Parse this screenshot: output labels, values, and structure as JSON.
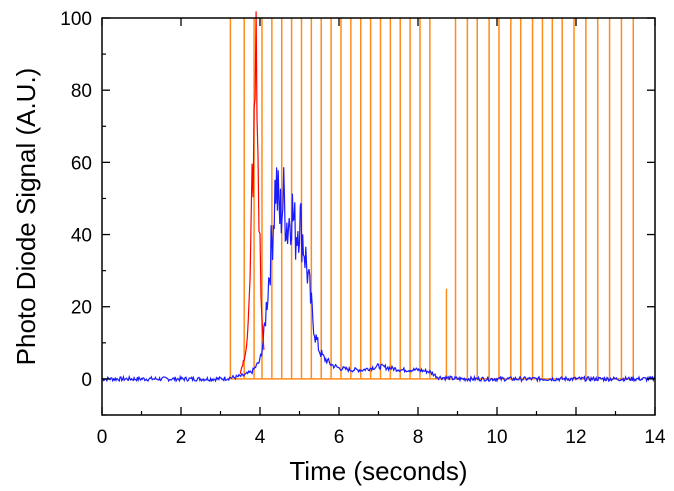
{
  "chart_data": {
    "type": "line",
    "xlabel": "Time (seconds)",
    "ylabel": "Photo Diode Signal (A.U.)",
    "xlim": [
      0,
      14
    ],
    "ylim": [
      -10,
      100
    ],
    "xticks": [
      0,
      2,
      4,
      6,
      8,
      10,
      12,
      14
    ],
    "yticks": [
      0,
      20,
      40,
      60,
      80,
      100
    ],
    "grid": false,
    "colors": {
      "blue": "#1a1aff",
      "red": "#ff0000",
      "orange": "#ff8c1a"
    },
    "series": [
      {
        "color": "#1a1aff",
        "x": [
          0,
          0.5,
          1,
          1.5,
          2,
          2.5,
          3,
          3.4,
          3.6,
          3.8,
          4.0,
          4.1,
          4.2,
          4.3,
          4.4,
          4.5,
          4.6,
          4.7,
          4.8,
          4.9,
          5.0,
          5.1,
          5.2,
          5.3,
          5.4,
          5.5,
          5.6,
          5.8,
          6.0,
          6.3,
          6.6,
          7.0,
          7.3,
          7.6,
          8.0,
          8.3,
          8.5,
          9,
          10,
          11,
          12,
          13,
          14
        ],
        "y": [
          0,
          0,
          0,
          0,
          0,
          0,
          0,
          0.5,
          1,
          2,
          5,
          12,
          25,
          38,
          55,
          45,
          50,
          42,
          48,
          40,
          45,
          38,
          30,
          20,
          12,
          8,
          6,
          4,
          3,
          2.5,
          2.5,
          3.5,
          3,
          2.5,
          2.5,
          2,
          0.5,
          0,
          0,
          0,
          0,
          0,
          0
        ]
      },
      {
        "color": "#ff0000",
        "x": [
          3.5,
          3.6,
          3.7,
          3.75,
          3.8,
          3.85,
          3.9,
          3.95,
          4.0,
          4.05,
          4.1
        ],
        "y": [
          2,
          5,
          15,
          25,
          55,
          65,
          90,
          60,
          35,
          15,
          8
        ]
      }
    ],
    "events": {
      "color": "#ff8c1a",
      "x": [
        3.25,
        3.6,
        3.85,
        4.05,
        4.3,
        4.55,
        4.8,
        5.05,
        5.3,
        5.55,
        5.8,
        6.05,
        6.3,
        6.55,
        6.8,
        7.05,
        7.3,
        7.55,
        7.8,
        8.05,
        8.3,
        8.95,
        9.25,
        9.5,
        9.8,
        10.05,
        10.35,
        10.6,
        10.9,
        11.15,
        11.4,
        11.65,
        11.95,
        12.25,
        12.55,
        12.85,
        13.15,
        13.45
      ],
      "peak": 100,
      "small_event": {
        "x": 8.72,
        "peak": 25
      }
    }
  }
}
